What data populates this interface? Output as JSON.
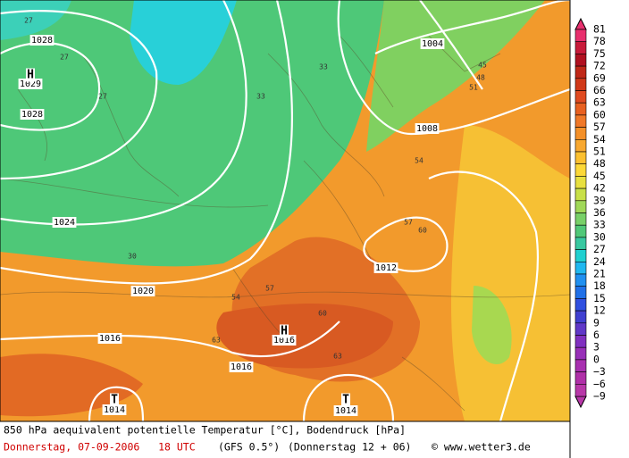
{
  "map": {
    "colorbar": {
      "labels": [
        "81",
        "78",
        "75",
        "72",
        "69",
        "66",
        "63",
        "60",
        "57",
        "54",
        "51",
        "48",
        "45",
        "42",
        "39",
        "36",
        "33",
        "30",
        "27",
        "24",
        "21",
        "18",
        "15",
        "12",
        "9",
        "6",
        "3",
        "0",
        "−3",
        "−6",
        "−9"
      ],
      "colors": [
        "#e8306e",
        "#c81a3a",
        "#b01020",
        "#c02818",
        "#d03818",
        "#e04a20",
        "#e86020",
        "#f07828",
        "#f49028",
        "#f8a830",
        "#fcc030",
        "#fcd838",
        "#e8e040",
        "#c8e048",
        "#a0d858",
        "#78d068",
        "#50c878",
        "#38c8a0",
        "#20d0d0",
        "#20b8f0",
        "#2090f0",
        "#2070e8",
        "#3050e0",
        "#4040d0",
        "#6038c8",
        "#8030c0",
        "#9830b8",
        "#a830b0",
        "#b030a8",
        "#b838a8"
      ]
    },
    "isobar_labels": [
      "1028",
      "1029",
      "1028",
      "1024",
      "1020",
      "1016",
      "1016",
      "1016",
      "1012",
      "1008",
      "1004",
      "1014",
      "1014"
    ],
    "pressure_centers": [
      "H",
      "H",
      "T",
      "T"
    ],
    "contour_labels": [
      "27",
      "27",
      "27",
      "33",
      "33",
      "30",
      "54",
      "57",
      "60",
      "63",
      "63",
      "45",
      "51",
      "48",
      "60",
      "57",
      "54"
    ],
    "footer": {
      "title": "850 hPa aequivalent potentielle Temperatur [°C], Bodendruck [hPa]",
      "date": "Donnerstag, 07-09-2006   18 UTC",
      "model": "(GFS 0.5°)",
      "run": "(Donnerstag 12 + 06)",
      "credit": "© www.wetter3.de"
    }
  }
}
